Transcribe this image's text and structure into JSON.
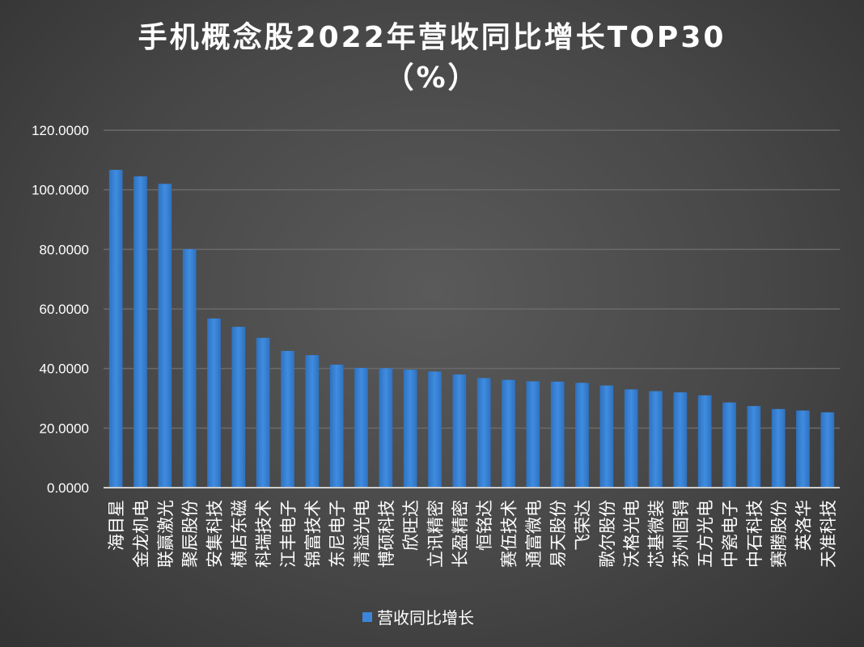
{
  "chart_data": {
    "type": "bar",
    "title": "手机概念股2022年营收同比增长TOP30",
    "subtitle": "（%）",
    "categories": [
      "海目星",
      "金龙机电",
      "联赢激光",
      "聚辰股份",
      "安集科技",
      "横店东磁",
      "科瑞技术",
      "江丰电子",
      "锦富技术",
      "东尼电子",
      "清溢光电",
      "博硕科技",
      "欣旺达",
      "立讯精密",
      "长盈精密",
      "恒铭达",
      "赛伍技术",
      "通富微电",
      "易天股份",
      "飞荣达",
      "歌尔股份",
      "沃格光电",
      "芯基微装",
      "苏州固锝",
      "五方光电",
      "中瓷电子",
      "中石科技",
      "赛腾股份",
      "英洛华",
      "天准科技"
    ],
    "series": [
      {
        "name": "营收同比增长",
        "values": [
          106.7,
          104.5,
          102.0,
          80.1,
          56.8,
          54.0,
          50.3,
          45.9,
          44.5,
          41.3,
          40.2,
          40.1,
          39.6,
          39.0,
          38.0,
          36.8,
          36.2,
          35.7,
          35.6,
          35.2,
          34.3,
          33.0,
          32.4,
          32.0,
          31.0,
          28.6,
          27.4,
          26.4,
          25.9,
          25.3
        ]
      }
    ],
    "yticks": [
      "0.0000",
      "20.0000",
      "40.0000",
      "60.0000",
      "80.0000",
      "100.0000",
      "120.0000"
    ],
    "ylim": [
      0,
      120
    ],
    "grid": true,
    "legend": "bottom",
    "colors": {
      "bar": "#3b86d8",
      "grid": "#6a6a6a",
      "axis": "#d0d0d0"
    }
  }
}
